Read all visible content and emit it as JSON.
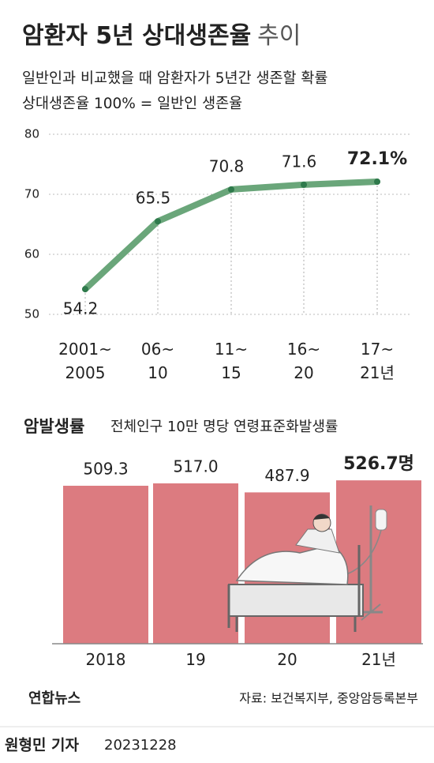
{
  "title": {
    "main": "암환자 5년 상대생존율",
    "suffix": "추이"
  },
  "subtitle": [
    "일반인과 비교했을 때 암환자가 5년간 생존할 확률",
    "상대생존율 100% = 일반인 생존율"
  ],
  "chart_data": [
    {
      "type": "line",
      "categories": [
        "2001~\n2005",
        "06~\n10",
        "11~\n15",
        "16~\n20",
        "17~\n21년"
      ],
      "values": [
        54.2,
        65.5,
        70.8,
        71.6,
        72.1
      ],
      "value_labels": [
        "54.2",
        "65.5",
        "70.8",
        "71.6",
        "72.1%"
      ],
      "color": "#6aa67a",
      "point_color": "#2f7a4c",
      "ylim": [
        50,
        80
      ],
      "yticks": [
        50,
        60,
        70,
        80
      ],
      "grid": true
    },
    {
      "type": "bar",
      "title": "암발생률",
      "subtitle": "전체인구 10만 명당 연령표준화발생률",
      "categories": [
        "2018",
        "19",
        "20",
        "21년"
      ],
      "values": [
        509.3,
        517.0,
        487.9,
        526.7
      ],
      "value_labels": [
        "509.3",
        "517.0",
        "487.9",
        "526.7명"
      ],
      "color": "#dc7b80",
      "ylim": [
        0,
        550
      ]
    }
  ],
  "footer": {
    "logo": "연합뉴스",
    "source": "자료: 보건복지부, 중앙암등록본부",
    "credit": "원형민 기자",
    "date": "20231228"
  }
}
